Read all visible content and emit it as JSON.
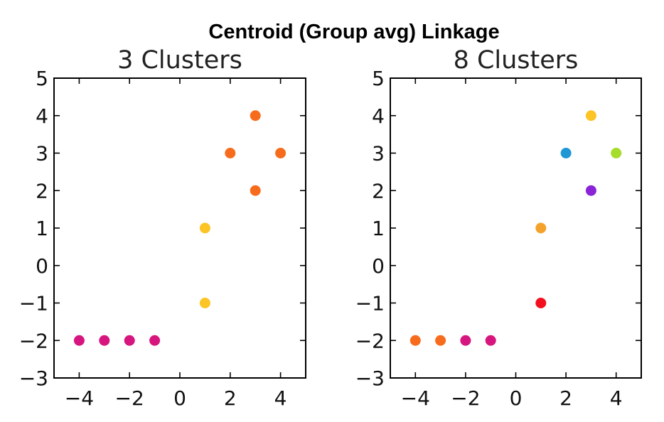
{
  "figure_title": "Centroid (Group avg) Linkage",
  "chart_data": [
    {
      "type": "scatter",
      "title": "3 Clusters",
      "xlabel": "",
      "ylabel": "",
      "xlim": [
        -5,
        5
      ],
      "ylim": [
        -3,
        5
      ],
      "xticks": [
        -4,
        -2,
        0,
        2,
        4
      ],
      "xtick_labels": [
        "−4",
        "−2",
        "0",
        "2",
        "4"
      ],
      "yticks": [
        -3,
        -2,
        -1,
        0,
        1,
        2,
        3,
        4,
        5
      ],
      "ytick_labels": [
        "−3",
        "−2",
        "−1",
        "0",
        "1",
        "2",
        "3",
        "4",
        "5"
      ],
      "grid": false,
      "points": [
        {
          "x": -4,
          "y": -2,
          "color": "#d6157e"
        },
        {
          "x": -3,
          "y": -2,
          "color": "#d6157e"
        },
        {
          "x": -2,
          "y": -2,
          "color": "#d6157e"
        },
        {
          "x": -1,
          "y": -2,
          "color": "#d6157e"
        },
        {
          "x": 1,
          "y": -1,
          "color": "#fcc425"
        },
        {
          "x": 1,
          "y": 1,
          "color": "#fcc425"
        },
        {
          "x": 3,
          "y": 2,
          "color": "#f76b1c"
        },
        {
          "x": 2,
          "y": 3,
          "color": "#f76b1c"
        },
        {
          "x": 4,
          "y": 3,
          "color": "#f76b1c"
        },
        {
          "x": 3,
          "y": 4,
          "color": "#f76b1c"
        }
      ]
    },
    {
      "type": "scatter",
      "title": "8 Clusters",
      "xlabel": "",
      "ylabel": "",
      "xlim": [
        -5,
        5
      ],
      "ylim": [
        -3,
        5
      ],
      "xticks": [
        -4,
        -2,
        0,
        2,
        4
      ],
      "xtick_labels": [
        "−4",
        "−2",
        "0",
        "2",
        "4"
      ],
      "yticks": [
        -3,
        -2,
        -1,
        0,
        1,
        2,
        3,
        4,
        5
      ],
      "ytick_labels": [
        "−3",
        "−2",
        "−1",
        "0",
        "1",
        "2",
        "3",
        "4",
        "5"
      ],
      "grid": false,
      "points": [
        {
          "x": -4,
          "y": -2,
          "color": "#f76b1c"
        },
        {
          "x": -3,
          "y": -2,
          "color": "#f76b1c"
        },
        {
          "x": -2,
          "y": -2,
          "color": "#d6157e"
        },
        {
          "x": -1,
          "y": -2,
          "color": "#d6157e"
        },
        {
          "x": 1,
          "y": -1,
          "color": "#f2101e"
        },
        {
          "x": 1,
          "y": 1,
          "color": "#f5a22c"
        },
        {
          "x": 3,
          "y": 2,
          "color": "#8a24d6"
        },
        {
          "x": 2,
          "y": 3,
          "color": "#1e97d4"
        },
        {
          "x": 4,
          "y": 3,
          "color": "#a6dc2a"
        },
        {
          "x": 3,
          "y": 4,
          "color": "#fcc425"
        }
      ]
    }
  ]
}
